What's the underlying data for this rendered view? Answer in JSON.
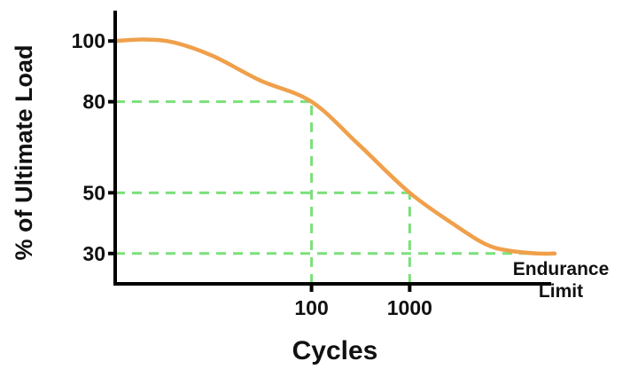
{
  "chart_data": {
    "type": "line",
    "title": "",
    "xlabel": "Cycles",
    "ylabel": "% of Ultimate Load",
    "x_scale": "log",
    "x_ticks": [
      {
        "value": 100,
        "label": "100"
      },
      {
        "value": 1000,
        "label": "1000"
      }
    ],
    "y_ticks": [
      {
        "value": 100,
        "label": "100"
      },
      {
        "value": 80,
        "label": "80"
      },
      {
        "value": 50,
        "label": "50"
      },
      {
        "value": 30,
        "label": "30"
      }
    ],
    "xlim": [
      1,
      30000
    ],
    "ylim": [
      20,
      110
    ],
    "series": [
      {
        "x": [
          1,
          2,
          4,
          10,
          30,
          100,
          300,
          1000,
          3000,
          6000,
          10000,
          20000,
          30000
        ],
        "y": [
          100,
          100.5,
          99.5,
          95,
          87,
          80,
          66,
          50,
          39,
          33,
          31,
          30,
          30
        ]
      }
    ],
    "reference_lines": [
      {
        "orientation": "horizontal",
        "y": 80,
        "x_end": 100
      },
      {
        "orientation": "horizontal",
        "y": 50,
        "x_end": 1000
      },
      {
        "orientation": "horizontal",
        "y": 30,
        "x_end": 30000
      },
      {
        "orientation": "vertical",
        "x": 100,
        "y_top": 80
      },
      {
        "orientation": "vertical",
        "x": 1000,
        "y_top": 50
      }
    ],
    "annotations": [
      {
        "text_lines": [
          "Endurance",
          "Limit"
        ],
        "anchor_y": 30
      }
    ],
    "grid": false,
    "legend": "none",
    "colors": {
      "line": "#f0a04b",
      "reference": "#7be07b",
      "axis": "#000000",
      "text": "#111111"
    }
  }
}
